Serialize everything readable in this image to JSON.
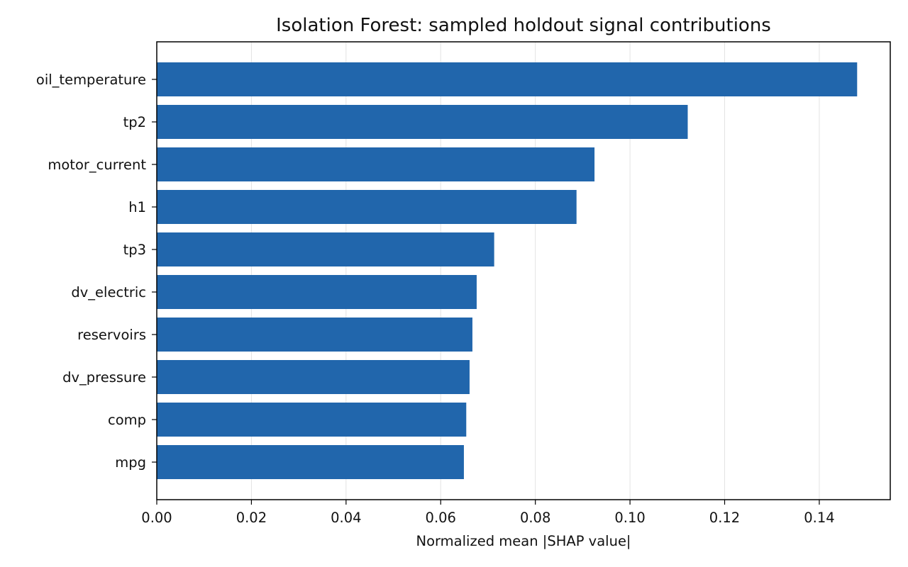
{
  "chart_data": {
    "type": "bar",
    "orientation": "horizontal",
    "title": "Isolation Forest: sampled holdout signal contributions",
    "xlabel": "Normalized mean |SHAP value|",
    "ylabel": "",
    "xlim": [
      0,
      0.155
    ],
    "xticks": [
      0.0,
      0.02,
      0.04,
      0.06,
      0.08,
      0.1,
      0.12,
      0.14
    ],
    "xtick_labels": [
      "0.00",
      "0.02",
      "0.04",
      "0.06",
      "0.08",
      "0.10",
      "0.12",
      "0.14"
    ],
    "grid": "vertical",
    "bar_color": "#2166ac",
    "categories": [
      "oil_temperature",
      "tp2",
      "motor_current",
      "h1",
      "tp3",
      "dv_electric",
      "reservoirs",
      "dv_pressure",
      "comp",
      "mpg"
    ],
    "values": [
      0.148,
      0.1122,
      0.0925,
      0.0887,
      0.0713,
      0.0676,
      0.0667,
      0.0661,
      0.0654,
      0.0649
    ]
  }
}
